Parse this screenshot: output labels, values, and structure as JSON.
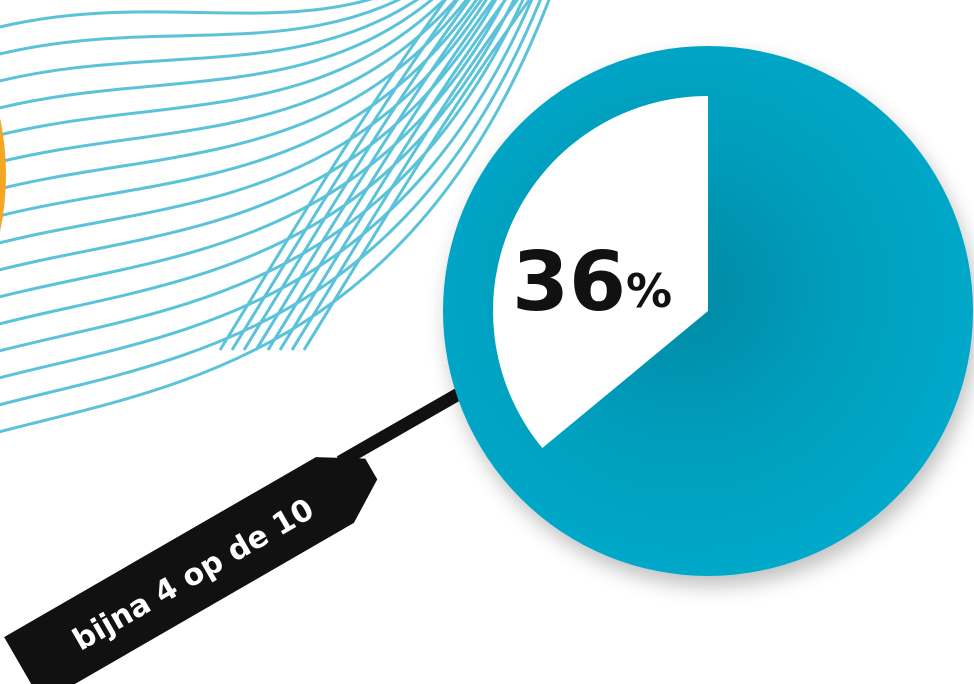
{
  "colors": {
    "pie_fill": "#05a8c9",
    "slice_fill": "#ffffff",
    "wave_lines": "#5bc3d9",
    "orange_accent": "#f5a623",
    "tag_fill": "#111111",
    "tag_text": "#ffffff",
    "number_text": "#111111"
  },
  "chart_data": {
    "type": "pie",
    "slices": [
      {
        "value": 36,
        "color": "#ffffff"
      },
      {
        "value": 64,
        "color": "#05a8c9"
      }
    ],
    "label": {
      "value": "36",
      "unit": "%"
    },
    "annotation": "bijna 4 op de 10"
  }
}
